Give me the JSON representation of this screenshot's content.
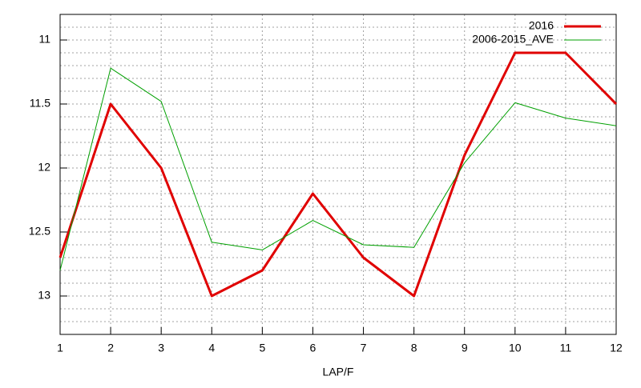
{
  "chart_data": {
    "type": "line",
    "xlabel": "LAP/F",
    "x": [
      1,
      2,
      3,
      4,
      5,
      6,
      7,
      8,
      9,
      10,
      11,
      12
    ],
    "series": [
      {
        "name": "2016",
        "color": "#e00000",
        "width": 3,
        "values": [
          12.7,
          11.5,
          12.0,
          13.0,
          12.8,
          12.2,
          12.7,
          13.0,
          11.9,
          11.1,
          11.1,
          11.5
        ]
      },
      {
        "name": "2006-2015_AVE",
        "color": "#00a000",
        "width": 1,
        "values": [
          12.8,
          11.22,
          11.48,
          12.58,
          12.64,
          12.41,
          12.6,
          12.62,
          11.96,
          11.49,
          11.61,
          11.67
        ]
      }
    ],
    "xlim": [
      1,
      12
    ],
    "xticks": [
      1,
      2,
      3,
      4,
      5,
      6,
      7,
      8,
      9,
      10,
      11,
      12
    ],
    "ylim": [
      13.3,
      10.8
    ],
    "yticks": [
      11,
      11.5,
      12,
      12.5,
      13
    ],
    "yminor": 5,
    "grid": true,
    "legend": "top-right"
  }
}
